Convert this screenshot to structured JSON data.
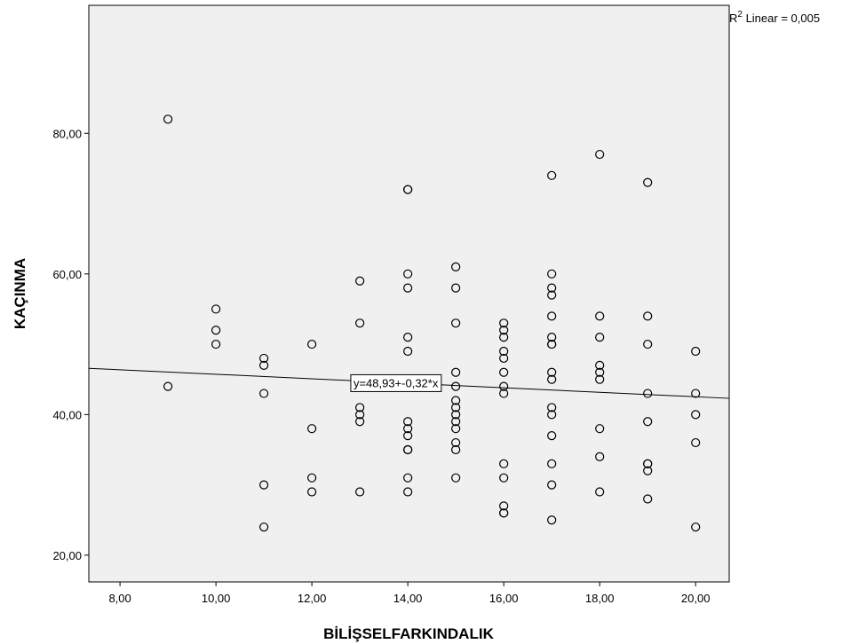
{
  "chart_data": {
    "type": "scatter",
    "xlabel": "BİLİŞSELFARKINDALIK",
    "ylabel": "KAÇINMA",
    "xlim": [
      7.35,
      20.7
    ],
    "ylim": [
      16.2,
      98.2
    ],
    "x_ticks": [
      "8,00",
      "10,00",
      "12,00",
      "14,00",
      "16,00",
      "18,00",
      "20,00"
    ],
    "x_tick_values": [
      8,
      10,
      12,
      14,
      16,
      18,
      20
    ],
    "y_ticks": [
      "20,00",
      "40,00",
      "60,00",
      "80,00"
    ],
    "y_tick_values": [
      20,
      40,
      60,
      80
    ],
    "grid": false,
    "background_color": "#f0f0f0",
    "marker": "hollow-circle",
    "r2_prefix": "R",
    "r2_sup": "2",
    "r2_text": " Linear = 0,005",
    "fit_line": {
      "intercept": 48.93,
      "slope": -0.32,
      "label": "y=48,93+-0,32*x"
    },
    "points": [
      [
        9,
        82
      ],
      [
        9,
        44
      ],
      [
        10,
        55
      ],
      [
        10,
        52
      ],
      [
        10,
        50
      ],
      [
        11,
        48
      ],
      [
        11,
        47
      ],
      [
        11,
        43
      ],
      [
        11,
        30
      ],
      [
        11,
        24
      ],
      [
        12,
        50
      ],
      [
        12,
        38
      ],
      [
        12,
        31
      ],
      [
        12,
        29
      ],
      [
        13,
        59
      ],
      [
        13,
        53
      ],
      [
        13,
        41
      ],
      [
        13,
        40
      ],
      [
        13,
        39
      ],
      [
        13,
        29
      ],
      [
        14,
        72
      ],
      [
        14,
        72
      ],
      [
        14,
        60
      ],
      [
        14,
        58
      ],
      [
        14,
        51
      ],
      [
        14,
        49
      ],
      [
        14,
        39
      ],
      [
        14,
        38
      ],
      [
        14,
        37
      ],
      [
        14,
        35
      ],
      [
        14,
        35
      ],
      [
        14,
        31
      ],
      [
        14,
        29
      ],
      [
        15,
        61
      ],
      [
        15,
        58
      ],
      [
        15,
        53
      ],
      [
        15,
        46
      ],
      [
        15,
        44
      ],
      [
        15,
        42
      ],
      [
        15,
        41
      ],
      [
        15,
        40
      ],
      [
        15,
        39
      ],
      [
        15,
        38
      ],
      [
        15,
        36
      ],
      [
        15,
        35
      ],
      [
        15,
        31
      ],
      [
        16,
        53
      ],
      [
        16,
        52
      ],
      [
        16,
        51
      ],
      [
        16,
        49
      ],
      [
        16,
        48
      ],
      [
        16,
        46
      ],
      [
        16,
        44
      ],
      [
        16,
        43
      ],
      [
        16,
        33
      ],
      [
        16,
        31
      ],
      [
        16,
        27
      ],
      [
        16,
        26
      ],
      [
        16,
        26
      ],
      [
        17,
        74
      ],
      [
        17,
        60
      ],
      [
        17,
        58
      ],
      [
        17,
        57
      ],
      [
        17,
        54
      ],
      [
        17,
        51
      ],
      [
        17,
        50
      ],
      [
        17,
        50
      ],
      [
        17,
        46
      ],
      [
        17,
        45
      ],
      [
        17,
        41
      ],
      [
        17,
        40
      ],
      [
        17,
        37
      ],
      [
        17,
        33
      ],
      [
        17,
        30
      ],
      [
        17,
        25
      ],
      [
        18,
        77
      ],
      [
        18,
        54
      ],
      [
        18,
        51
      ],
      [
        18,
        47
      ],
      [
        18,
        46
      ],
      [
        18,
        45
      ],
      [
        18,
        38
      ],
      [
        18,
        34
      ],
      [
        18,
        29
      ],
      [
        19,
        73
      ],
      [
        19,
        54
      ],
      [
        19,
        50
      ],
      [
        19,
        43
      ],
      [
        19,
        39
      ],
      [
        19,
        33
      ],
      [
        19,
        33
      ],
      [
        19,
        32
      ],
      [
        19,
        28
      ],
      [
        20,
        49
      ],
      [
        20,
        43
      ],
      [
        20,
        40
      ],
      [
        20,
        36
      ],
      [
        20,
        24
      ]
    ]
  }
}
